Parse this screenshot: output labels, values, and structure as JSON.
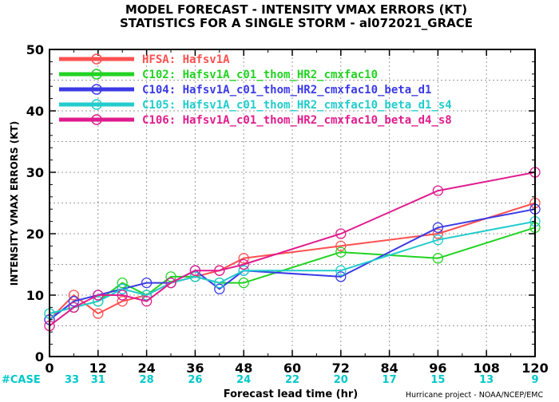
{
  "chart_data": {
    "type": "line",
    "title_line1": "MODEL FORECAST - INTENSITY VMAX ERRORS (KT)",
    "title_line2": "STATISTICS FOR A SINGLE STORM - al072021_GRACE",
    "ylabel": "INTENSITY VMAX ERRORS (KT)",
    "xlabel": "Forecast lead time (hr)",
    "credit": "Hurricane project - NOAA/NCEP/EMC",
    "xlim": [
      0,
      120
    ],
    "ylim": [
      0,
      50
    ],
    "x_ticks": [
      0,
      12,
      24,
      36,
      48,
      60,
      72,
      84,
      96,
      108,
      120
    ],
    "y_ticks": [
      0,
      10,
      20,
      30,
      40,
      50
    ],
    "grid": true,
    "legend_position": "top-left",
    "case_label": "#CASE",
    "case_color": "#00c8c8",
    "case_counts": [
      {
        "x": 0,
        "n": "33"
      },
      {
        "x": 12,
        "n": "31"
      },
      {
        "x": 24,
        "n": "28"
      },
      {
        "x": 36,
        "n": "26"
      },
      {
        "x": 48,
        "n": "24"
      },
      {
        "x": 60,
        "n": "22"
      },
      {
        "x": 72,
        "n": "20"
      },
      {
        "x": 84,
        "n": "17"
      },
      {
        "x": 96,
        "n": "15"
      },
      {
        "x": 108,
        "n": "13"
      },
      {
        "x": 120,
        "n": "9"
      }
    ],
    "series": [
      {
        "name": "HFSA: Hafsv1A",
        "color": "#ff5050",
        "x": [
          0,
          6,
          12,
          18,
          24,
          30,
          36,
          42,
          48,
          72,
          96,
          120
        ],
        "values": [
          6,
          10,
          7,
          9,
          10,
          12,
          13,
          14,
          16,
          18,
          20,
          25
        ]
      },
      {
        "name": "C102: Hafsv1A_c01_thom_HR2_cmxfac10",
        "color": "#22d322",
        "x": [
          0,
          6,
          12,
          18,
          24,
          30,
          36,
          42,
          48,
          72,
          96,
          120
        ],
        "values": [
          7,
          8,
          9,
          12,
          10,
          13,
          13,
          12,
          12,
          17,
          16,
          21
        ]
      },
      {
        "name": "C104: Hafsv1A_c01_thom_HR2_cmxfac10_beta_d1",
        "color": "#3a3ae6",
        "x": [
          0,
          6,
          12,
          18,
          24,
          30,
          36,
          42,
          48,
          72,
          96,
          120
        ],
        "values": [
          6,
          9,
          10,
          11,
          12,
          12,
          14,
          11,
          14,
          13,
          21,
          24
        ]
      },
      {
        "name": "C105: Hafsv1A_c01_thom_HR2_cmxfac10_beta_d1_s4",
        "color": "#22cccc",
        "x": [
          0,
          6,
          12,
          18,
          24,
          30,
          36,
          42,
          48,
          72,
          96,
          120
        ],
        "values": [
          7,
          8,
          9,
          11,
          10,
          12,
          13,
          12,
          14,
          14,
          19,
          22
        ]
      },
      {
        "name": "C106: Hafsv1A_c01_thom_HR2_cmxfac10_beta_d4_s8",
        "color": "#e01c8e",
        "x": [
          0,
          6,
          12,
          18,
          24,
          30,
          36,
          42,
          48,
          72,
          96,
          120
        ],
        "values": [
          5,
          8,
          10,
          10,
          9,
          12,
          14,
          14,
          15,
          20,
          27,
          30
        ]
      }
    ]
  }
}
